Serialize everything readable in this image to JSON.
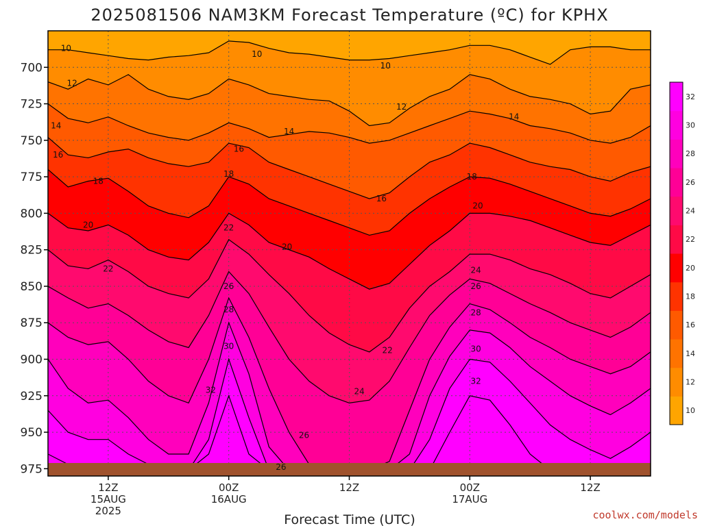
{
  "title": "2025081506 NAM3KM Forecast Temperature (ºC) for KPHX",
  "credit": "coolwx.com/models",
  "colors": {
    "palette": [
      "#ffa500",
      "#ff8c00",
      "#ff7300",
      "#ff5a00",
      "#ff3300",
      "#ff0000",
      "#ff0a46",
      "#ff0a6e",
      "#ff0096",
      "#ff00bc",
      "#ff00e0",
      "#ff00ff"
    ],
    "ground": "#a0522d",
    "contour": "#000000",
    "grid": "#555555"
  },
  "chart_data": {
    "type": "heatmap",
    "title": "2025081506 NAM3KM Forecast Temperature (ºC) for KPHX",
    "xlabel": "Forecast Time (UTC)",
    "ylabel": "",
    "x_unit": "hours_from_2025081506",
    "xlim": [
      0,
      60
    ],
    "ylim": [
      675,
      980
    ],
    "yaxis": "pressure_hPa_inverted",
    "grid": true,
    "x_ticks": [
      {
        "x": 6,
        "lines": [
          "12Z",
          "15AUG",
          "2025"
        ]
      },
      {
        "x": 18,
        "lines": [
          "00Z",
          "16AUG"
        ]
      },
      {
        "x": 30,
        "lines": [
          "12Z"
        ]
      },
      {
        "x": 42,
        "lines": [
          "00Z",
          "17AUG"
        ]
      },
      {
        "x": 54,
        "lines": [
          "12Z"
        ]
      }
    ],
    "y_ticks": [
      700,
      725,
      750,
      775,
      800,
      825,
      850,
      875,
      900,
      925,
      950,
      975
    ],
    "colorbar": {
      "levels": [
        10,
        12,
        14,
        16,
        18,
        20,
        22,
        24,
        26,
        28,
        30,
        32
      ],
      "tick_labels": [
        10,
        12,
        14,
        16,
        18,
        20,
        22,
        24,
        26,
        28,
        30,
        32
      ],
      "placement": "right"
    },
    "surface_pressure": 976,
    "contours": [
      {
        "level": 10,
        "x": [
          0,
          2,
          4,
          6,
          8,
          10,
          12,
          14,
          16,
          18,
          20,
          22,
          24,
          26,
          28,
          30,
          32,
          34,
          36,
          38,
          40,
          42,
          44,
          46,
          48,
          50,
          52,
          54,
          56,
          58,
          60
        ],
        "p": [
          688,
          688,
          690,
          692,
          694,
          695,
          693,
          692,
          690,
          682,
          683,
          687,
          690,
          691,
          693,
          695,
          695,
          694,
          692,
          690,
          688,
          685,
          685,
          688,
          693,
          698,
          688,
          686,
          686,
          688,
          688
        ]
      },
      {
        "level": 12,
        "x": [
          0,
          2,
          4,
          6,
          8,
          10,
          12,
          14,
          16,
          18,
          20,
          22,
          24,
          26,
          28,
          30,
          32,
          34,
          36,
          38,
          40,
          42,
          44,
          46,
          48,
          50,
          52,
          54,
          56,
          58,
          60
        ],
        "p": [
          710,
          715,
          708,
          712,
          705,
          715,
          720,
          722,
          718,
          708,
          712,
          718,
          720,
          722,
          723,
          730,
          740,
          738,
          728,
          720,
          715,
          705,
          708,
          715,
          720,
          722,
          725,
          732,
          730,
          715,
          712
        ]
      },
      {
        "level": 14,
        "x": [
          0,
          2,
          4,
          6,
          8,
          10,
          12,
          14,
          16,
          18,
          20,
          22,
          24,
          26,
          28,
          30,
          32,
          34,
          36,
          38,
          40,
          42,
          44,
          46,
          48,
          50,
          52,
          54,
          56,
          58,
          60
        ],
        "p": [
          725,
          735,
          738,
          734,
          740,
          745,
          748,
          750,
          745,
          738,
          742,
          748,
          746,
          744,
          745,
          748,
          752,
          750,
          745,
          740,
          735,
          730,
          732,
          735,
          740,
          742,
          745,
          750,
          752,
          748,
          740
        ]
      },
      {
        "level": 16,
        "x": [
          0,
          2,
          4,
          6,
          8,
          10,
          12,
          14,
          16,
          18,
          20,
          22,
          24,
          26,
          28,
          30,
          32,
          34,
          36,
          38,
          40,
          42,
          44,
          46,
          48,
          50,
          52,
          54,
          56,
          58,
          60
        ],
        "p": [
          748,
          760,
          762,
          758,
          756,
          762,
          766,
          768,
          765,
          752,
          755,
          765,
          770,
          775,
          780,
          785,
          790,
          786,
          775,
          765,
          760,
          752,
          755,
          760,
          765,
          768,
          770,
          775,
          778,
          772,
          768
        ]
      },
      {
        "level": 18,
        "x": [
          0,
          2,
          4,
          6,
          8,
          10,
          12,
          14,
          16,
          18,
          20,
          22,
          24,
          26,
          28,
          30,
          32,
          34,
          36,
          38,
          40,
          42,
          44,
          46,
          48,
          50,
          52,
          54,
          56,
          58,
          60
        ],
        "p": [
          770,
          782,
          778,
          776,
          785,
          795,
          800,
          803,
          795,
          775,
          780,
          790,
          795,
          800,
          805,
          810,
          815,
          812,
          800,
          790,
          782,
          775,
          776,
          780,
          785,
          790,
          795,
          800,
          802,
          797,
          790
        ]
      },
      {
        "level": 20,
        "x": [
          0,
          2,
          4,
          6,
          8,
          10,
          12,
          14,
          16,
          18,
          20,
          22,
          24,
          26,
          28,
          30,
          32,
          34,
          36,
          38,
          40,
          42,
          44,
          46,
          48,
          50,
          52,
          54,
          56,
          58,
          60
        ],
        "p": [
          800,
          810,
          812,
          808,
          815,
          825,
          830,
          832,
          820,
          800,
          808,
          820,
          825,
          830,
          838,
          845,
          852,
          848,
          835,
          822,
          812,
          800,
          800,
          802,
          805,
          810,
          815,
          820,
          822,
          815,
          808
        ]
      },
      {
        "level": 22,
        "x": [
          0,
          2,
          4,
          6,
          8,
          10,
          12,
          14,
          16,
          18,
          20,
          22,
          24,
          26,
          28,
          30,
          32,
          34,
          36,
          38,
          40,
          42,
          44,
          46,
          48,
          50,
          52,
          54,
          56,
          58,
          60
        ],
        "p": [
          825,
          836,
          838,
          832,
          840,
          850,
          855,
          858,
          845,
          818,
          828,
          842,
          855,
          870,
          882,
          890,
          895,
          885,
          865,
          850,
          840,
          828,
          828,
          832,
          838,
          842,
          848,
          855,
          858,
          850,
          842
        ]
      },
      {
        "level": 24,
        "x": [
          0,
          2,
          4,
          6,
          8,
          10,
          12,
          14,
          16,
          18,
          20,
          22,
          24,
          26,
          28,
          30,
          32,
          34,
          36,
          38,
          40,
          42,
          44,
          46,
          48,
          50,
          52,
          54,
          56,
          58,
          60
        ],
        "p": [
          850,
          858,
          865,
          862,
          870,
          880,
          888,
          892,
          870,
          840,
          855,
          878,
          900,
          915,
          925,
          930,
          928,
          915,
          892,
          870,
          856,
          845,
          848,
          855,
          862,
          868,
          875,
          880,
          885,
          878,
          868
        ]
      },
      {
        "level": 26,
        "x": [
          0,
          2,
          4,
          6,
          8,
          10,
          12,
          14,
          16,
          18,
          20,
          22,
          24,
          26,
          28,
          30,
          32,
          34,
          36,
          38,
          40,
          42,
          44,
          46,
          48,
          50,
          52,
          54,
          56,
          58,
          60
        ],
        "p": [
          875,
          885,
          890,
          888,
          900,
          915,
          925,
          930,
          900,
          858,
          885,
          920,
          950,
          972,
          976,
          976,
          976,
          970,
          935,
          900,
          878,
          862,
          866,
          875,
          885,
          892,
          900,
          905,
          910,
          905,
          895
        ]
      },
      {
        "level": 28,
        "x": [
          0,
          2,
          4,
          6,
          8,
          10,
          12,
          14,
          16,
          18,
          20,
          22,
          24,
          26,
          28,
          30,
          32,
          34,
          36,
          38,
          40,
          42,
          44,
          46,
          48,
          50,
          52,
          54,
          56,
          58,
          60
        ],
        "p": [
          900,
          920,
          930,
          928,
          940,
          955,
          965,
          965,
          930,
          875,
          910,
          960,
          976,
          976,
          976,
          976,
          976,
          976,
          965,
          925,
          898,
          880,
          882,
          892,
          905,
          915,
          925,
          932,
          938,
          930,
          920
        ]
      },
      {
        "level": 30,
        "x": [
          0,
          2,
          4,
          6,
          8,
          10,
          12,
          14,
          16,
          18,
          20,
          22,
          24,
          26,
          28,
          30,
          32,
          34,
          36,
          38,
          40,
          42,
          44,
          46,
          48,
          50,
          52,
          54,
          56,
          58,
          60
        ],
        "p": [
          935,
          950,
          955,
          955,
          965,
          972,
          976,
          976,
          955,
          900,
          940,
          976,
          976,
          976,
          976,
          976,
          976,
          976,
          976,
          955,
          920,
          900,
          902,
          915,
          930,
          945,
          955,
          962,
          968,
          960,
          950
        ]
      },
      {
        "level": 32,
        "x": [
          0,
          2,
          4,
          6,
          8,
          10,
          12,
          14,
          16,
          18,
          20,
          22,
          24,
          26,
          28,
          30,
          32,
          34,
          36,
          38,
          40,
          42,
          44,
          46,
          48,
          50,
          52,
          54,
          56,
          58,
          60
        ],
        "p": [
          965,
          972,
          976,
          976,
          976,
          976,
          976,
          976,
          965,
          925,
          965,
          976,
          976,
          976,
          976,
          976,
          976,
          976,
          976,
          976,
          950,
          925,
          928,
          945,
          965,
          976,
          976,
          976,
          976,
          976,
          976
        ]
      }
    ],
    "contour_labels": [
      {
        "text": "10",
        "x": 1.8,
        "p": 687
      },
      {
        "text": "10",
        "x": 20.8,
        "p": 691
      },
      {
        "text": "10",
        "x": 33.6,
        "p": 699
      },
      {
        "text": "12",
        "x": 2.4,
        "p": 711
      },
      {
        "text": "12",
        "x": 35.2,
        "p": 727
      },
      {
        "text": "14",
        "x": 0.8,
        "p": 740
      },
      {
        "text": "14",
        "x": 24.0,
        "p": 744
      },
      {
        "text": "14",
        "x": 46.4,
        "p": 734
      },
      {
        "text": "16",
        "x": 1.0,
        "p": 760
      },
      {
        "text": "16",
        "x": 19.0,
        "p": 756
      },
      {
        "text": "16",
        "x": 33.2,
        "p": 790
      },
      {
        "text": "18",
        "x": 5.0,
        "p": 778
      },
      {
        "text": "18",
        "x": 18.0,
        "p": 773
      },
      {
        "text": "18",
        "x": 42.2,
        "p": 775
      },
      {
        "text": "20",
        "x": 4.0,
        "p": 808
      },
      {
        "text": "20",
        "x": 23.8,
        "p": 823
      },
      {
        "text": "20",
        "x": 42.8,
        "p": 795
      },
      {
        "text": "22",
        "x": 6.0,
        "p": 838
      },
      {
        "text": "22",
        "x": 18.0,
        "p": 810
      },
      {
        "text": "22",
        "x": 33.8,
        "p": 894
      },
      {
        "text": "24",
        "x": 42.6,
        "p": 839
      },
      {
        "text": "24",
        "x": 31.0,
        "p": 922
      },
      {
        "text": "26",
        "x": 18.0,
        "p": 850
      },
      {
        "text": "26",
        "x": 42.6,
        "p": 850
      },
      {
        "text": "26",
        "x": 25.5,
        "p": 952
      },
      {
        "text": "26",
        "x": 23.2,
        "p": 974
      },
      {
        "text": "28",
        "x": 18.0,
        "p": 866
      },
      {
        "text": "28",
        "x": 42.6,
        "p": 868
      },
      {
        "text": "30",
        "x": 18.0,
        "p": 891
      },
      {
        "text": "30",
        "x": 42.6,
        "p": 893
      },
      {
        "text": "32",
        "x": 16.2,
        "p": 921
      },
      {
        "text": "32",
        "x": 42.6,
        "p": 915
      }
    ]
  }
}
